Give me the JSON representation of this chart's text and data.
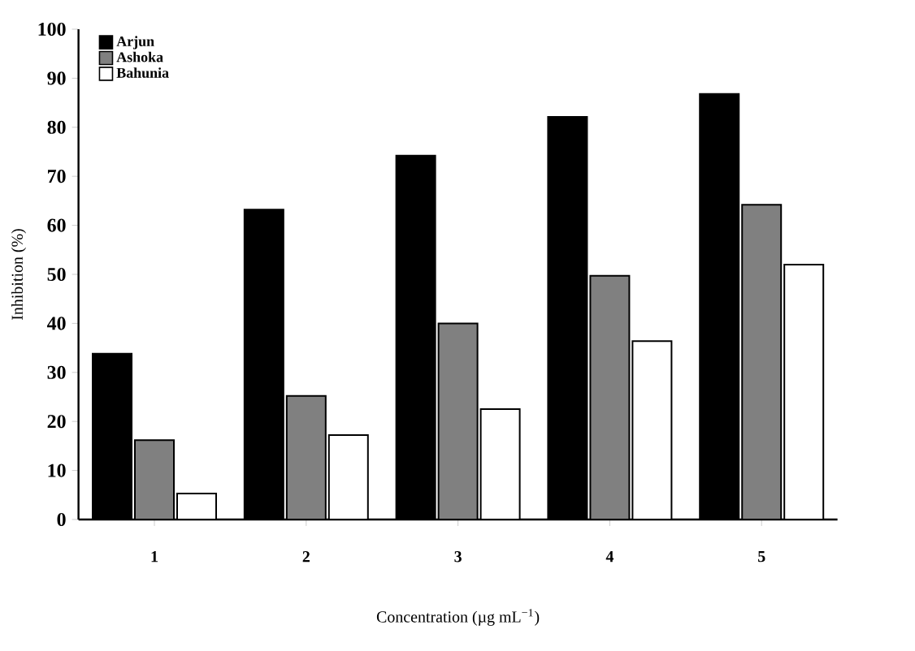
{
  "chart_data": {
    "type": "bar",
    "categories": [
      "1",
      "2",
      "3",
      "4",
      "5"
    ],
    "xlabel": "Concentration (µg mL$^{−1}$)",
    "ylabel": "Inhibition (%)",
    "ylim": [
      0,
      100
    ],
    "yticks": [
      0,
      10,
      20,
      30,
      40,
      50,
      60,
      70,
      80,
      90,
      100
    ],
    "legend": "top left",
    "grid": false,
    "series": [
      {
        "name": "Arjun",
        "color": "#000000",
        "values": [
          33.8,
          63.2,
          74.2,
          82.1,
          86.8
        ]
      },
      {
        "name": "Ashoka",
        "color": "#808080",
        "values": [
          16.2,
          25.2,
          40,
          49.7,
          64.2
        ]
      },
      {
        "name": "Bahunia",
        "color": "#ffffff",
        "values": [
          5.3,
          17.2,
          22.5,
          36.4,
          52
        ]
      }
    ]
  }
}
